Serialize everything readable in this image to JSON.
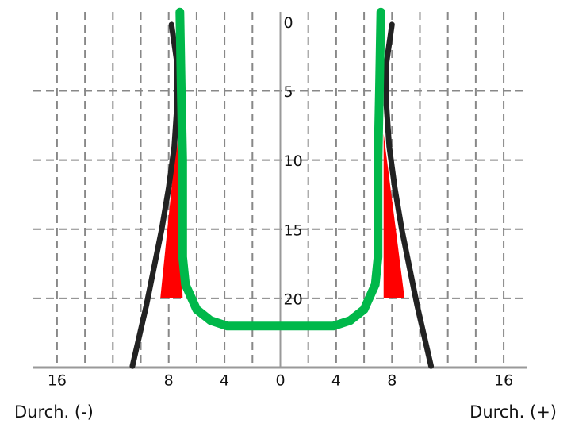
{
  "chart_data": {
    "type": "line",
    "xlabel_left": "Durch. (-)",
    "xlabel_right": "Durch. (+)",
    "xlim": [
      -17.7,
      17.7
    ],
    "ylim": [
      25,
      -1
    ],
    "xticks": [
      {
        "value": -16,
        "label": "16"
      },
      {
        "value": -8,
        "label": "8"
      },
      {
        "value": -4,
        "label": "4"
      },
      0,
      4,
      8,
      16
    ],
    "yticks": [
      0,
      5,
      10,
      15,
      20
    ],
    "xgrid": [
      -16,
      -14,
      -12,
      -10,
      -8,
      -6,
      -4,
      -2,
      2,
      4,
      6,
      8,
      10,
      12,
      14,
      16
    ],
    "ygrid": [
      5,
      10,
      15,
      20
    ],
    "grid": true,
    "series": [
      {
        "style": "polygon",
        "color": "#ff0000",
        "x": [
          -7.4,
          -8.6,
          -7.0
        ],
        "y": [
          8.1,
          20,
          20
        ]
      },
      {
        "style": "polygon",
        "color": "#ff0000",
        "x": [
          7.4,
          8.9,
          7.4
        ],
        "y": [
          8.1,
          20,
          20
        ]
      },
      {
        "style": "line",
        "color": "#222222",
        "x": [
          -7.8,
          -7.4,
          -7.4,
          -7.6,
          -8.0,
          -8.5,
          -9.1,
          -9.6,
          -10.6
        ],
        "y": [
          0.2,
          3,
          6,
          9,
          12,
          15,
          18,
          20.5,
          24.9
        ]
      },
      {
        "style": "line",
        "color": "#222222",
        "x": [
          8.0,
          7.6,
          7.6,
          7.8,
          8.2,
          8.7,
          9.3,
          9.8,
          10.8
        ],
        "y": [
          0.2,
          3,
          6,
          9,
          12,
          15,
          18,
          20.5,
          24.9
        ]
      },
      {
        "style": "line",
        "color": "#00b84a",
        "x": [
          -7.2,
          -7.1,
          -7.0,
          -7.0,
          -6.8,
          -6.0,
          -5.0,
          -3.8,
          3.8,
          5.0,
          6.0,
          6.8,
          7.0,
          7.0,
          7.1,
          7.2
        ],
        "y": [
          -0.7,
          5,
          10,
          17,
          19,
          20.8,
          21.6,
          22,
          22,
          21.6,
          20.8,
          19,
          17,
          10,
          5,
          -0.7
        ]
      }
    ]
  }
}
